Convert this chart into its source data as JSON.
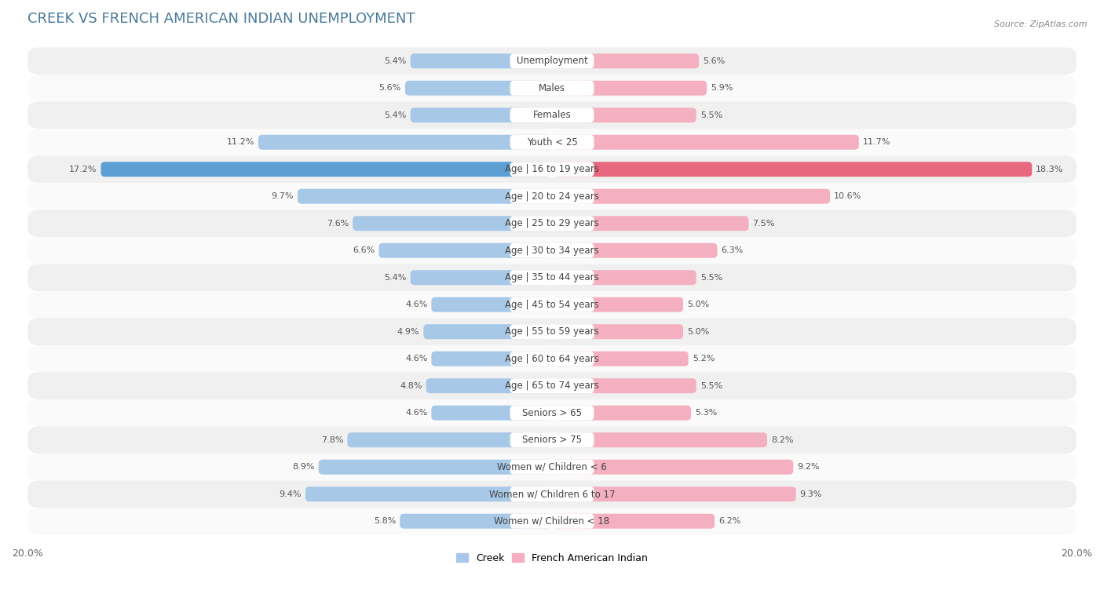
{
  "title": "CREEK VS FRENCH AMERICAN INDIAN UNEMPLOYMENT",
  "source": "Source: ZipAtlas.com",
  "categories": [
    "Unemployment",
    "Males",
    "Females",
    "Youth < 25",
    "Age | 16 to 19 years",
    "Age | 20 to 24 years",
    "Age | 25 to 29 years",
    "Age | 30 to 34 years",
    "Age | 35 to 44 years",
    "Age | 45 to 54 years",
    "Age | 55 to 59 years",
    "Age | 60 to 64 years",
    "Age | 65 to 74 years",
    "Seniors > 65",
    "Seniors > 75",
    "Women w/ Children < 6",
    "Women w/ Children 6 to 17",
    "Women w/ Children < 18"
  ],
  "creek_values": [
    5.4,
    5.6,
    5.4,
    11.2,
    17.2,
    9.7,
    7.6,
    6.6,
    5.4,
    4.6,
    4.9,
    4.6,
    4.8,
    4.6,
    7.8,
    8.9,
    9.4,
    5.8
  ],
  "french_values": [
    5.6,
    5.9,
    5.5,
    11.7,
    18.3,
    10.6,
    7.5,
    6.3,
    5.5,
    5.0,
    5.0,
    5.2,
    5.5,
    5.3,
    8.2,
    9.2,
    9.3,
    6.2
  ],
  "creek_color": "#a8c8e8",
  "french_color": "#f4b0c0",
  "creek_highlight_color": "#5b9fd4",
  "french_highlight_color": "#e86880",
  "background_color": "#ffffff",
  "row_color_odd": "#f0f0f0",
  "row_color_even": "#fafafa",
  "axis_max": 20.0,
  "bar_height": 0.55,
  "title_fontsize": 13,
  "label_fontsize": 8.5,
  "value_fontsize": 8,
  "legend_creek": "Creek",
  "legend_french": "French American Indian",
  "highlight_index": 4
}
